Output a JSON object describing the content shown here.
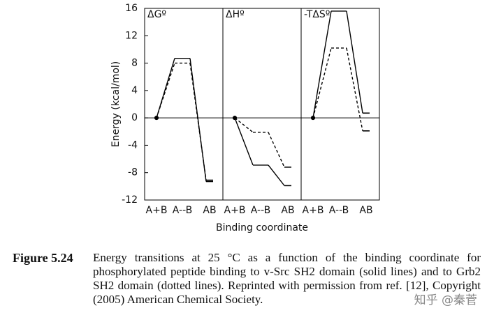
{
  "chart_data": {
    "type": "line",
    "ylabel": "Energy (kcal/mol)",
    "xlabel": "Binding coordinate",
    "ylim": [
      -12,
      16
    ],
    "yticks": [
      -12,
      -8,
      -4,
      0,
      4,
      8,
      12,
      16
    ],
    "categories": [
      "A+B",
      "A--B",
      "AB"
    ],
    "panels": [
      {
        "title": "ΔGº",
        "series": [
          {
            "style": "solid",
            "color": "#000000",
            "values": [
              0,
              8.7,
              -9.3
            ]
          },
          {
            "style": "dashed",
            "color": "#000000",
            "values": [
              0,
              8.0,
              -9.1
            ]
          }
        ]
      },
      {
        "title": "ΔHº",
        "series": [
          {
            "style": "solid",
            "color": "#000000",
            "values": [
              0,
              -6.9,
              -9.9
            ]
          },
          {
            "style": "dashed",
            "color": "#000000",
            "values": [
              0,
              -2.1,
              -7.2
            ]
          }
        ]
      },
      {
        "title": "-TΔSº",
        "series": [
          {
            "style": "solid",
            "color": "#000000",
            "values": [
              0,
              15.6,
              0.7
            ]
          },
          {
            "style": "dashed",
            "color": "#000000",
            "values": [
              0,
              10.2,
              -1.9
            ]
          }
        ]
      }
    ]
  },
  "caption": {
    "label": "Figure 5.24",
    "text": "Energy transitions at 25 °C as a function of the binding coordinate for phosphorylated peptide binding to v-Src SH2 domain (solid lines) and to Grb2 SH2 domain (dotted lines). Reprinted with permission from ref. [12], Copyright (2005) American Chemical Society."
  },
  "watermark": "知乎 @秦菅"
}
